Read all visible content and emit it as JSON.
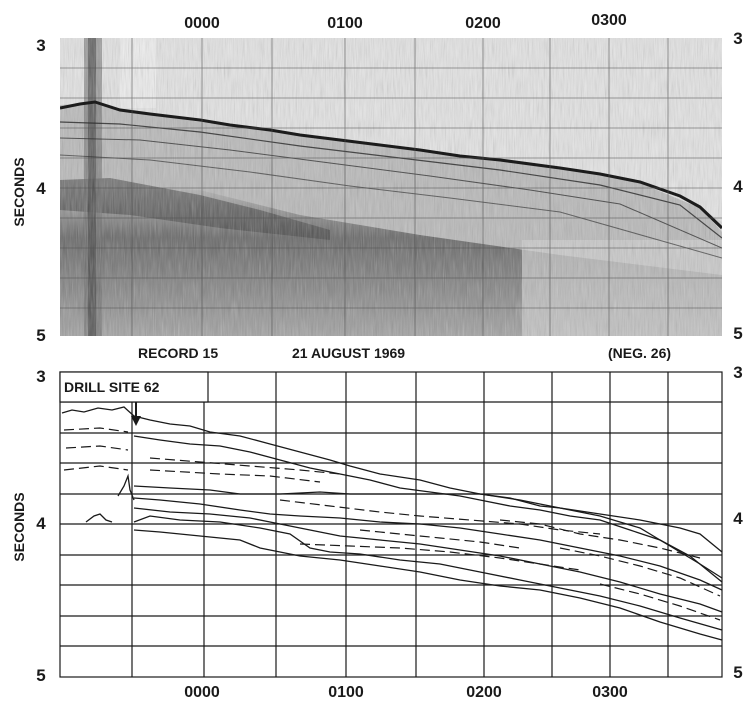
{
  "top_panel": {
    "time_labels": [
      "0000",
      "0100",
      "0200",
      "0300"
    ],
    "left_ticks": [
      "3",
      "4",
      "5"
    ],
    "right_ticks": [
      "3",
      "4",
      "5"
    ],
    "ylabel": "SECONDS",
    "caption": {
      "record": "RECORD 15",
      "date": "21 AUGUST 1969",
      "neg": "(NEG. 26)"
    }
  },
  "bottom_panel": {
    "annotation": "DRILL SITE 62",
    "time_labels": [
      "0000",
      "0100",
      "0200",
      "0300"
    ],
    "left_ticks": [
      "3",
      "4",
      "5"
    ],
    "right_ticks": [
      "3",
      "4",
      "5"
    ],
    "ylabel": "SECONDS"
  },
  "colors": {
    "ink": "#1a1a1a",
    "paper": "#ffffff",
    "record_bg": "#d9d9d9"
  }
}
